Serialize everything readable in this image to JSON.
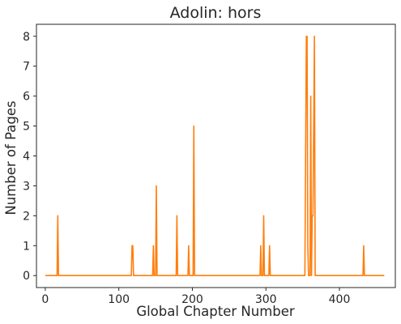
{
  "chart_data": {
    "type": "line",
    "title": "Adolin: hors",
    "xlabel": "Global Chapter Number",
    "ylabel": "Number of Pages",
    "xlim": [
      -12,
      476
    ],
    "ylim": [
      -0.4,
      8.4
    ],
    "x_ticks": [
      0,
      100,
      200,
      300,
      400
    ],
    "y_ticks": [
      0,
      1,
      2,
      3,
      4,
      5,
      6,
      7,
      8
    ],
    "grid": false,
    "line_color": "#ff7f0e",
    "series": [
      {
        "points": [
          [
            0,
            0
          ],
          [
            16,
            0
          ],
          [
            17,
            2
          ],
          [
            18,
            0
          ],
          [
            117,
            0
          ],
          [
            118,
            1
          ],
          [
            119,
            1
          ],
          [
            120,
            0
          ],
          [
            146,
            0
          ],
          [
            147,
            1
          ],
          [
            148,
            0
          ],
          [
            150,
            0
          ],
          [
            151,
            3
          ],
          [
            152,
            0
          ],
          [
            178,
            0
          ],
          [
            179,
            2
          ],
          [
            180,
            0
          ],
          [
            194,
            0
          ],
          [
            195,
            1
          ],
          [
            196,
            0
          ],
          [
            201,
            0
          ],
          [
            202,
            5
          ],
          [
            203,
            0
          ],
          [
            292,
            0
          ],
          [
            293,
            1
          ],
          [
            294,
            0
          ],
          [
            296,
            0
          ],
          [
            297,
            2
          ],
          [
            298,
            0
          ],
          [
            304,
            0
          ],
          [
            305,
            1
          ],
          [
            306,
            0
          ],
          [
            353,
            0
          ],
          [
            355,
            8
          ],
          [
            356,
            8
          ],
          [
            357,
            1
          ],
          [
            358,
            0
          ],
          [
            360,
            0
          ],
          [
            361,
            6
          ],
          [
            362,
            0
          ],
          [
            363,
            2
          ],
          [
            364,
            2
          ],
          [
            366,
            8
          ],
          [
            367,
            0
          ],
          [
            432,
            0
          ],
          [
            433,
            1
          ],
          [
            434,
            0
          ],
          [
            461,
            0
          ]
        ]
      }
    ]
  }
}
